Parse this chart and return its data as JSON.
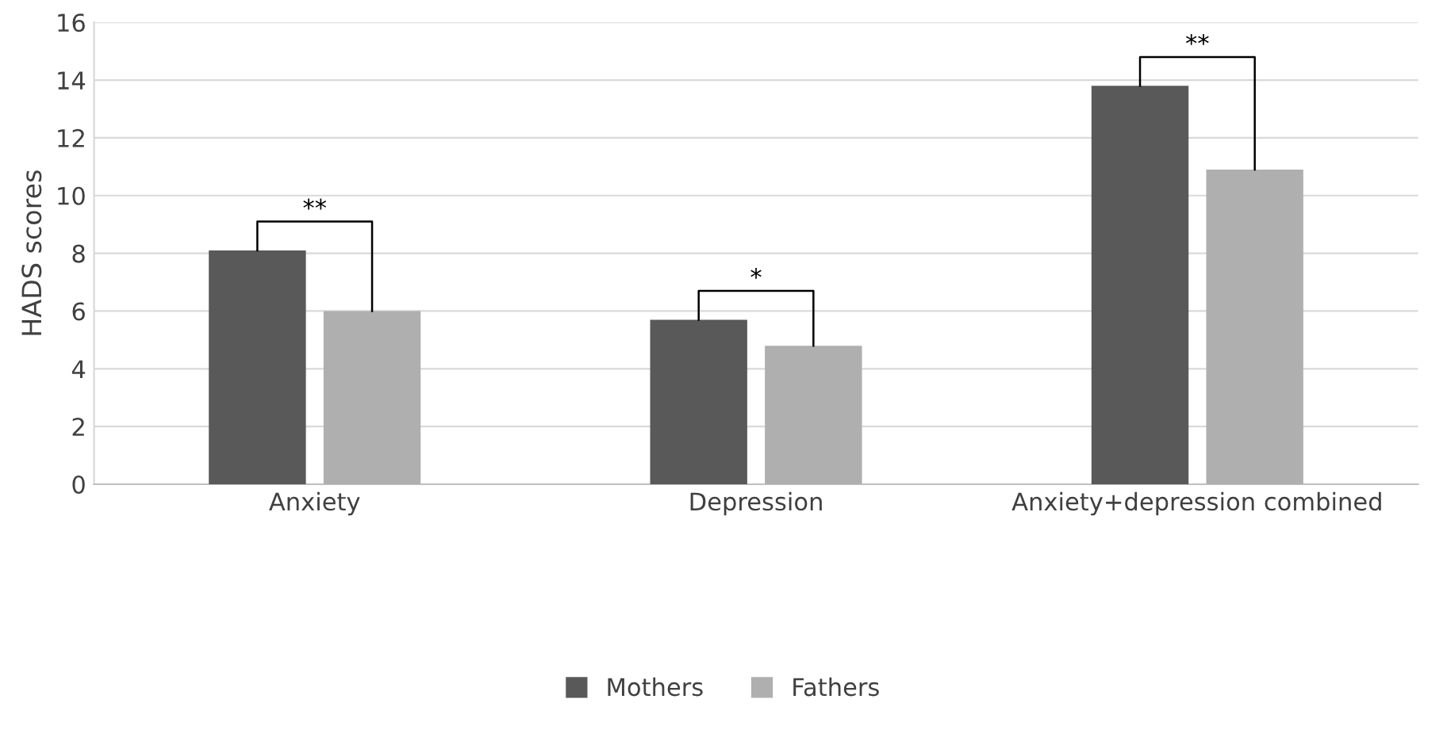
{
  "chart_data": {
    "type": "bar",
    "ylabel": "HADS scores",
    "categories": [
      "Anxiety",
      "Depression",
      "Anxiety+depression combined"
    ],
    "series": [
      {
        "name": "Mothers",
        "color": "#595959",
        "values": [
          8.1,
          5.7,
          13.8
        ]
      },
      {
        "name": "Fathers",
        "color": "#afafaf",
        "values": [
          6.0,
          4.8,
          10.9
        ]
      }
    ],
    "ylim": [
      0,
      16
    ],
    "yticks": [
      0,
      2,
      4,
      6,
      8,
      10,
      12,
      14,
      16
    ],
    "grid": "y",
    "legend": "bottom",
    "annotations": [
      "**",
      "*",
      "**"
    ]
  }
}
